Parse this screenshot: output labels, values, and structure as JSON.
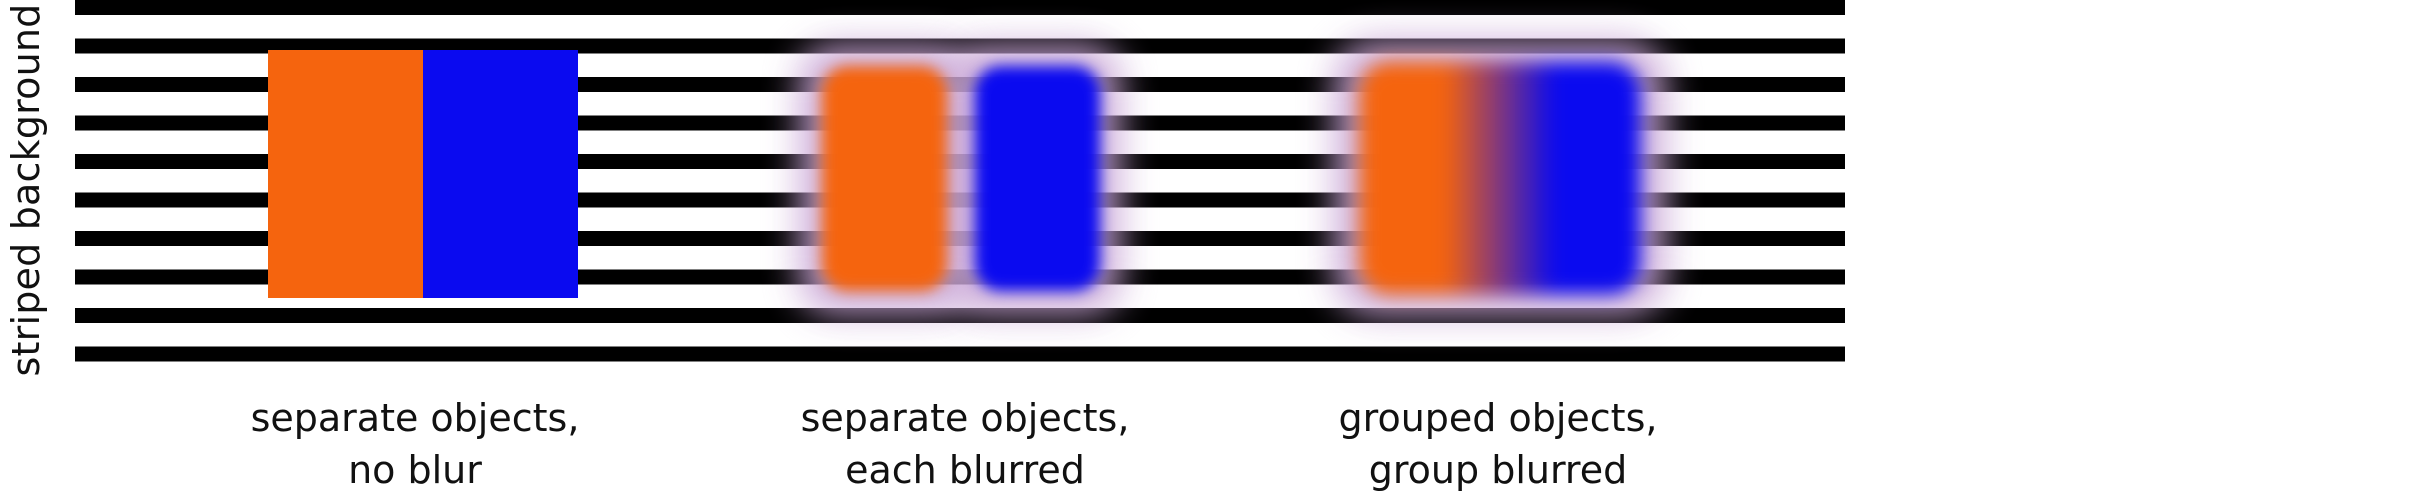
{
  "side_label": "striped background",
  "colors": {
    "orange": "#f5640e",
    "blue": "#0a0af0",
    "stripe": "#000000",
    "background": "#ffffff",
    "halo": "#c9a6d6"
  },
  "panels": [
    {
      "caption_line1": "separate objects,",
      "caption_line2": "no blur"
    },
    {
      "caption_line1": "separate objects,",
      "caption_line2": "each blurred"
    },
    {
      "caption_line1": "grouped objects,",
      "caption_line2": "group blurred"
    }
  ]
}
